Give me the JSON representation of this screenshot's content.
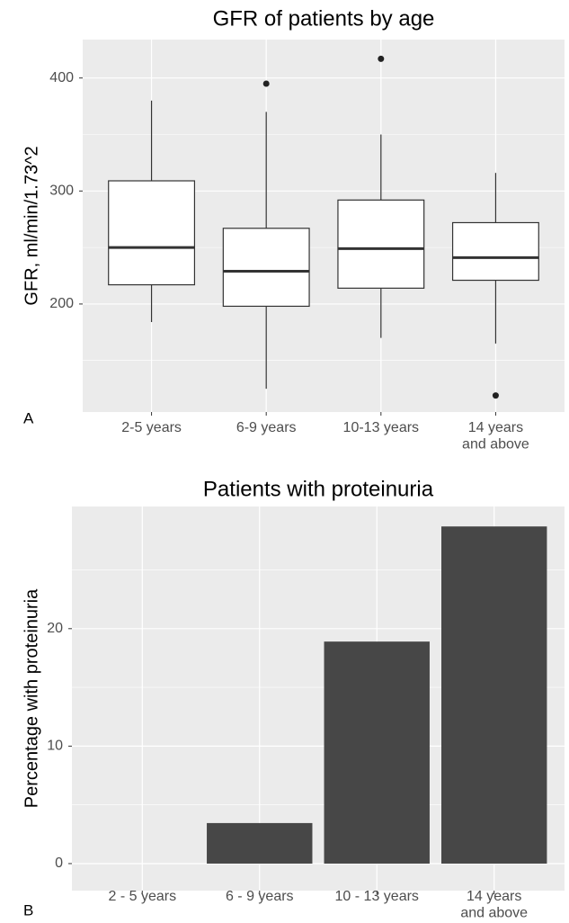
{
  "chart_data": [
    {
      "type": "box",
      "title": "GFR of patients by age",
      "panel_label": "A",
      "y_label": "GFR, ml/min/1.73^2",
      "categories": [
        "2-5 years",
        "6-9 years",
        "10-13 years",
        "14 years\nand above"
      ],
      "boxes": [
        {
          "whisker_low": 184,
          "q1": 217,
          "median": 250,
          "q3": 309,
          "whisker_high": 380,
          "outliers": []
        },
        {
          "whisker_low": 125,
          "q1": 198,
          "median": 229,
          "q3": 267,
          "whisker_high": 370,
          "outliers": [
            395
          ]
        },
        {
          "whisker_low": 170,
          "q1": 214,
          "median": 249,
          "q3": 292,
          "whisker_high": 350,
          "outliers": [
            417
          ]
        },
        {
          "whisker_low": 165,
          "q1": 221,
          "median": 241,
          "q3": 272,
          "whisker_high": 316,
          "outliers": [
            119
          ]
        }
      ],
      "ylim": [
        104.4,
        434
      ],
      "yticks": [
        200,
        300,
        400
      ],
      "minor_yticks": [
        150,
        250,
        350
      ],
      "grid": true
    },
    {
      "type": "bar",
      "title": "Patients with proteinuria",
      "panel_label": "B",
      "y_label": "Percentage with proteinuria",
      "categories": [
        "2 - 5 years",
        "6 - 9 years",
        "10 - 13 years",
        "14 years\nand above"
      ],
      "values": [
        0,
        3.45,
        18.9,
        28.7
      ],
      "color": "#474747",
      "ylim": [
        -2.3,
        30.4
      ],
      "yticks": [
        0,
        10,
        20
      ],
      "minor_yticks": [
        5,
        15,
        25
      ],
      "grid": true
    }
  ]
}
